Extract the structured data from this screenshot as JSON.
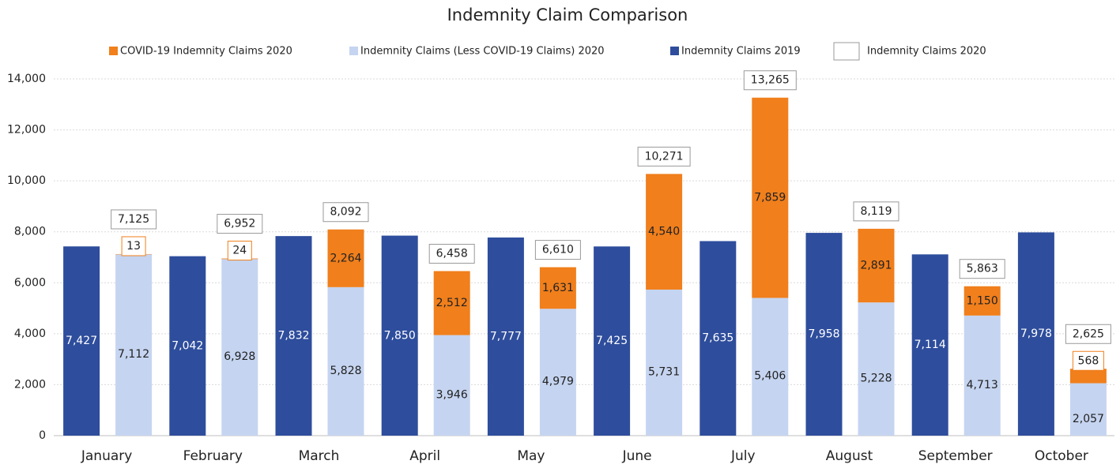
{
  "chart_data": {
    "type": "bar",
    "title": "Indemnity Claim Comparison",
    "categories": [
      "January",
      "February",
      "March",
      "April",
      "May",
      "June",
      "July",
      "August",
      "September",
      "October"
    ],
    "series": [
      {
        "name": "COVID-19 Indemnity Claims 2020",
        "color": "#f07f1c",
        "values": [
          13,
          24,
          2264,
          2512,
          1631,
          4540,
          7859,
          2891,
          1150,
          568
        ],
        "value_labels": [
          "13",
          "24",
          "2,264",
          "2,512",
          "1,631",
          "4,540",
          "7,859",
          "2,891",
          "1,150",
          "568"
        ]
      },
      {
        "name": "Indemnity Claims (Less COVID-19 Claims) 2020",
        "color": "#c5d4f0",
        "values": [
          7112,
          6928,
          5828,
          3946,
          4979,
          5731,
          5406,
          5228,
          4713,
          2057
        ],
        "value_labels": [
          "7,112",
          "6,928",
          "5,828",
          "3,946",
          "4,979",
          "5,731",
          "5,406",
          "5,228",
          "4,713",
          "2,057"
        ]
      },
      {
        "name": "Indemnity Claims 2019",
        "color": "#2e4d9c",
        "values": [
          7427,
          7042,
          7832,
          7850,
          7777,
          7425,
          7635,
          7958,
          7114,
          7978
        ],
        "value_labels": [
          "7,427",
          "7,042",
          "7,832",
          "7,850",
          "7,777",
          "7,425",
          "7,635",
          "7,958",
          "7,114",
          "7,978"
        ]
      },
      {
        "name": "Indemnity Claims 2020",
        "color": "#ffffff",
        "values": [
          7125,
          6952,
          8092,
          6458,
          6610,
          10271,
          13265,
          8119,
          5863,
          2625
        ],
        "value_labels": [
          "7,125",
          "6,952",
          "8,092",
          "6,458",
          "6,610",
          "10,271",
          "13,265",
          "8,119",
          "5,863",
          "2,625"
        ]
      }
    ],
    "ylim": [
      0,
      14000
    ],
    "yticks": [
      0,
      {
        "value": 2000,
        "label": "2,000"
      },
      {
        "value": 4000,
        "label": "4,000"
      },
      {
        "value": 6000,
        "label": "6,000"
      },
      {
        "value": 8000,
        "label": "8,000"
      },
      {
        "value": 10000,
        "label": "10,000"
      },
      {
        "value": 12000,
        "label": "12,000"
      },
      {
        "value": 14000,
        "label": "14,000"
      }
    ],
    "grid": true
  }
}
